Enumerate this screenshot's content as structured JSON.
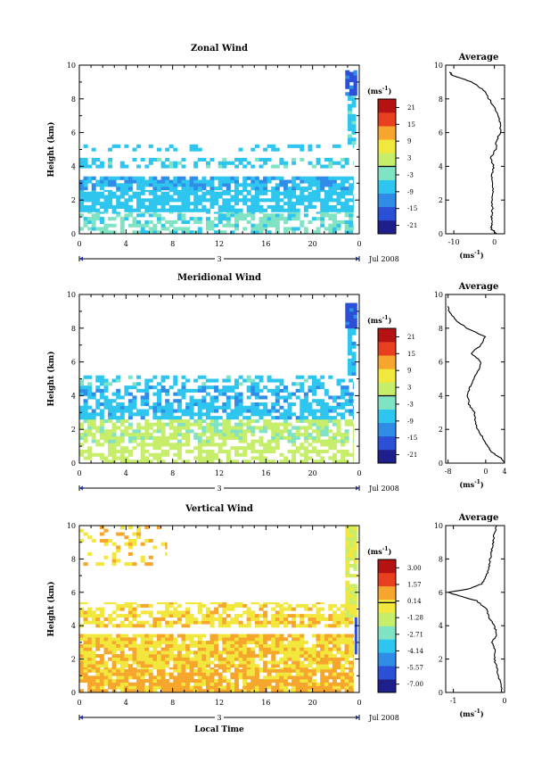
{
  "chart_data": [
    {
      "type": "heatmap",
      "title": "Zonal Wind",
      "xlabel": "",
      "ylabel": "Height (km)",
      "xlim": [
        0,
        24
      ],
      "ylim": [
        0,
        10
      ],
      "x_ticks": [
        "0",
        "4",
        "8",
        "12",
        "16",
        "20",
        "0"
      ],
      "y_ticks": [
        "0",
        "2",
        "4",
        "6",
        "8",
        "10"
      ],
      "date_axis": {
        "day_label": "3",
        "month_year": "Jul 2008"
      },
      "colorbar": {
        "unit": "(ms",
        "unit_exp": "-1",
        "unit_close": ")",
        "ticks": [
          "-21",
          "-15",
          "-9",
          "-3",
          "3",
          "9",
          "15",
          "21"
        ],
        "vmin": -24,
        "vmax": 24
      },
      "colormap": [
        "#1f1f8c",
        "#2b4fd6",
        "#2f8de8",
        "#2ec6ee",
        "#7fe3c4",
        "#c6ee6a",
        "#f2e73c",
        "#f6a62c",
        "#e8401f",
        "#b51212"
      ],
      "bands": [
        {
          "x0": 0,
          "x1": 23.5,
          "y0": 0.0,
          "y1": 1.3,
          "v": -4,
          "f": 0.55
        },
        {
          "x0": 0,
          "x1": 23.5,
          "y0": 1.3,
          "y1": 2.6,
          "v": -7,
          "f": 0.75
        },
        {
          "x0": 0,
          "x1": 23.5,
          "y0": 2.6,
          "y1": 3.4,
          "v": -9,
          "f": 0.8
        },
        {
          "x0": 0,
          "x1": 23.5,
          "y0": 3.9,
          "y1": 4.5,
          "v": -6,
          "f": 0.45
        },
        {
          "x0": 0,
          "x1": 23.5,
          "y0": 4.9,
          "y1": 5.3,
          "v": -7,
          "f": 0.3
        },
        {
          "x0": 23.0,
          "x1": 23.7,
          "y0": 5.3,
          "y1": 8.2,
          "v": -6,
          "f": 0.9
        },
        {
          "x0": 22.8,
          "x1": 23.8,
          "y0": 8.2,
          "y1": 9.7,
          "v": -15,
          "f": 0.95
        }
      ],
      "profile": {
        "title": "Average",
        "xlim": [
          -12,
          2.5
        ],
        "x_ticks": [
          "-10",
          "0"
        ],
        "x_tick_values": [
          -10,
          0
        ],
        "xlabel_unit": "(ms",
        "xlabel_exp": "-1",
        "xlabel_close": ")",
        "height_km": [
          0.0,
          0.3,
          0.6,
          1.0,
          1.5,
          2.0,
          2.5,
          3.0,
          3.5,
          4.0,
          4.5,
          5.0,
          5.5,
          6.0,
          6.5,
          7.0,
          7.5,
          8.0,
          8.5,
          9.0,
          9.2,
          9.4,
          9.6
        ],
        "value": [
          0.5,
          -0.8,
          -0.6,
          -0.7,
          -0.5,
          -0.6,
          -0.3,
          -0.5,
          -0.6,
          -0.2,
          -0.9,
          0.3,
          0.5,
          1.4,
          1.6,
          0.8,
          0.0,
          -1.3,
          -2.6,
          -5.5,
          -8.0,
          -10.5,
          -11.0
        ]
      }
    },
    {
      "type": "heatmap",
      "title": "Meridional Wind",
      "xlabel": "",
      "ylabel": "Height (km)",
      "xlim": [
        0,
        24
      ],
      "ylim": [
        0,
        10
      ],
      "x_ticks": [
        "0",
        "4",
        "8",
        "12",
        "16",
        "20",
        "0"
      ],
      "y_ticks": [
        "0",
        "2",
        "4",
        "6",
        "8",
        "10"
      ],
      "date_axis": {
        "day_label": "3",
        "month_year": "Jul 2008"
      },
      "colorbar": {
        "unit": "(ms",
        "unit_exp": "-1",
        "unit_close": ")",
        "ticks": [
          "-21",
          "-15",
          "-9",
          "-3",
          "3",
          "9",
          "15",
          "21"
        ],
        "vmin": -24,
        "vmax": 24
      },
      "colormap": [
        "#1f1f8c",
        "#2b4fd6",
        "#2f8de8",
        "#2ec6ee",
        "#7fe3c4",
        "#c6ee6a",
        "#f2e73c",
        "#f6a62c",
        "#e8401f",
        "#b51212"
      ],
      "bands": [
        {
          "x0": 0,
          "x1": 23.5,
          "y0": 0.0,
          "y1": 1.2,
          "v": 2,
          "f": 0.55
        },
        {
          "x0": 0,
          "x1": 23.5,
          "y0": 1.2,
          "y1": 2.6,
          "v": 1,
          "f": 0.7
        },
        {
          "x0": 0,
          "x1": 23.5,
          "y0": 2.6,
          "y1": 3.6,
          "v": -8,
          "f": 0.7
        },
        {
          "x0": 0,
          "x1": 23.5,
          "y0": 3.6,
          "y1": 4.6,
          "v": -9,
          "f": 0.55
        },
        {
          "x0": 0,
          "x1": 23.5,
          "y0": 4.6,
          "y1": 5.2,
          "v": -6,
          "f": 0.35
        },
        {
          "x0": 23.0,
          "x1": 23.7,
          "y0": 5.2,
          "y1": 8.0,
          "v": -8,
          "f": 0.85
        },
        {
          "x0": 22.8,
          "x1": 23.8,
          "y0": 8.0,
          "y1": 9.5,
          "v": -15,
          "f": 0.95
        }
      ],
      "profile": {
        "title": "Average",
        "xlim": [
          -8.5,
          4
        ],
        "x_ticks": [
          "-8",
          "0",
          "4"
        ],
        "x_tick_values": [
          -8,
          0,
          4
        ],
        "xlabel_unit": "(ms",
        "xlabel_exp": "-1",
        "xlabel_close": ")",
        "height_km": [
          0.0,
          0.3,
          0.6,
          1.0,
          1.5,
          2.0,
          2.5,
          3.0,
          3.5,
          4.0,
          4.5,
          5.0,
          5.5,
          6.0,
          6.5,
          7.0,
          7.5,
          8.0,
          8.5,
          9.0,
          9.3
        ],
        "value": [
          4.0,
          3.2,
          1.5,
          0.3,
          -0.6,
          -1.8,
          -2.3,
          -2.4,
          -3.6,
          -3.8,
          -3.4,
          -2.6,
          -1.5,
          -1.0,
          -3.1,
          -1.0,
          -0.2,
          -4.0,
          -6.5,
          -7.8,
          -8.0
        ]
      }
    },
    {
      "type": "heatmap",
      "title": "Vertical Wind",
      "xlabel": "Local Time",
      "ylabel": "Height (km)",
      "xlim": [
        0,
        24
      ],
      "ylim": [
        0,
        10
      ],
      "x_ticks": [
        "0",
        "4",
        "8",
        "12",
        "16",
        "20",
        "0"
      ],
      "y_ticks": [
        "0",
        "2",
        "4",
        "6",
        "8",
        "10"
      ],
      "date_axis": {
        "day_label": "3",
        "month_year": "Jul 2008"
      },
      "colorbar": {
        "unit": "(ms",
        "unit_exp": "-1",
        "unit_close": ")",
        "ticks": [
          "-7.00",
          "-5.57",
          "-4.14",
          "-2.71",
          "-1.28",
          "0.14",
          "1.57",
          "3.00"
        ],
        "vmin": -7.7,
        "vmax": 3.7
      },
      "colormap": [
        "#1f1f8c",
        "#2b4fd6",
        "#2f8de8",
        "#2ec6ee",
        "#7fe3c4",
        "#c6ee6a",
        "#f2e73c",
        "#f6a62c",
        "#e8401f",
        "#b51212"
      ],
      "bands": [
        {
          "x0": 0,
          "x1": 23.5,
          "y0": 0.0,
          "y1": 1.5,
          "v": 0.5,
          "f": 0.85
        },
        {
          "x0": 0,
          "x1": 23.5,
          "y0": 1.5,
          "y1": 3.5,
          "v": 0.2,
          "f": 0.85
        },
        {
          "x0": 0,
          "x1": 23.5,
          "y0": 3.9,
          "y1": 4.7,
          "v": 0.1,
          "f": 0.7
        },
        {
          "x0": 0,
          "x1": 23.5,
          "y0": 4.7,
          "y1": 5.4,
          "v": 0.0,
          "f": 0.5
        },
        {
          "x0": 0,
          "x1": 7.5,
          "y0": 7.6,
          "y1": 10.0,
          "v": 0.2,
          "f": 0.2
        },
        {
          "x0": 22.8,
          "x1": 23.8,
          "y0": 4.5,
          "y1": 10.0,
          "v": -0.8,
          "f": 0.9
        },
        {
          "x0": 23.6,
          "x1": 23.8,
          "y0": 2.3,
          "y1": 4.5,
          "v": -6.2,
          "f": 1.0
        }
      ],
      "profile": {
        "title": "Average",
        "xlim": [
          -1.15,
          0
        ],
        "x_ticks": [
          "-1",
          "0"
        ],
        "x_tick_values": [
          -1,
          0
        ],
        "xlabel_unit": "(ms",
        "xlabel_exp": "-1",
        "xlabel_close": ")",
        "height_km": [
          0.0,
          0.5,
          1.0,
          1.5,
          2.0,
          2.5,
          3.0,
          3.5,
          4.0,
          4.5,
          5.0,
          5.5,
          5.8,
          6.0,
          6.2,
          6.5,
          7.0,
          7.5,
          8.0,
          8.5,
          9.0,
          9.5,
          10.0
        ],
        "value": [
          -0.05,
          -0.08,
          -0.12,
          -0.15,
          -0.2,
          -0.18,
          -0.25,
          -0.15,
          -0.2,
          -0.3,
          -0.35,
          -0.55,
          -0.9,
          -1.1,
          -0.7,
          -0.45,
          -0.35,
          -0.3,
          -0.28,
          -0.25,
          -0.22,
          -0.2,
          -0.15
        ]
      }
    }
  ]
}
